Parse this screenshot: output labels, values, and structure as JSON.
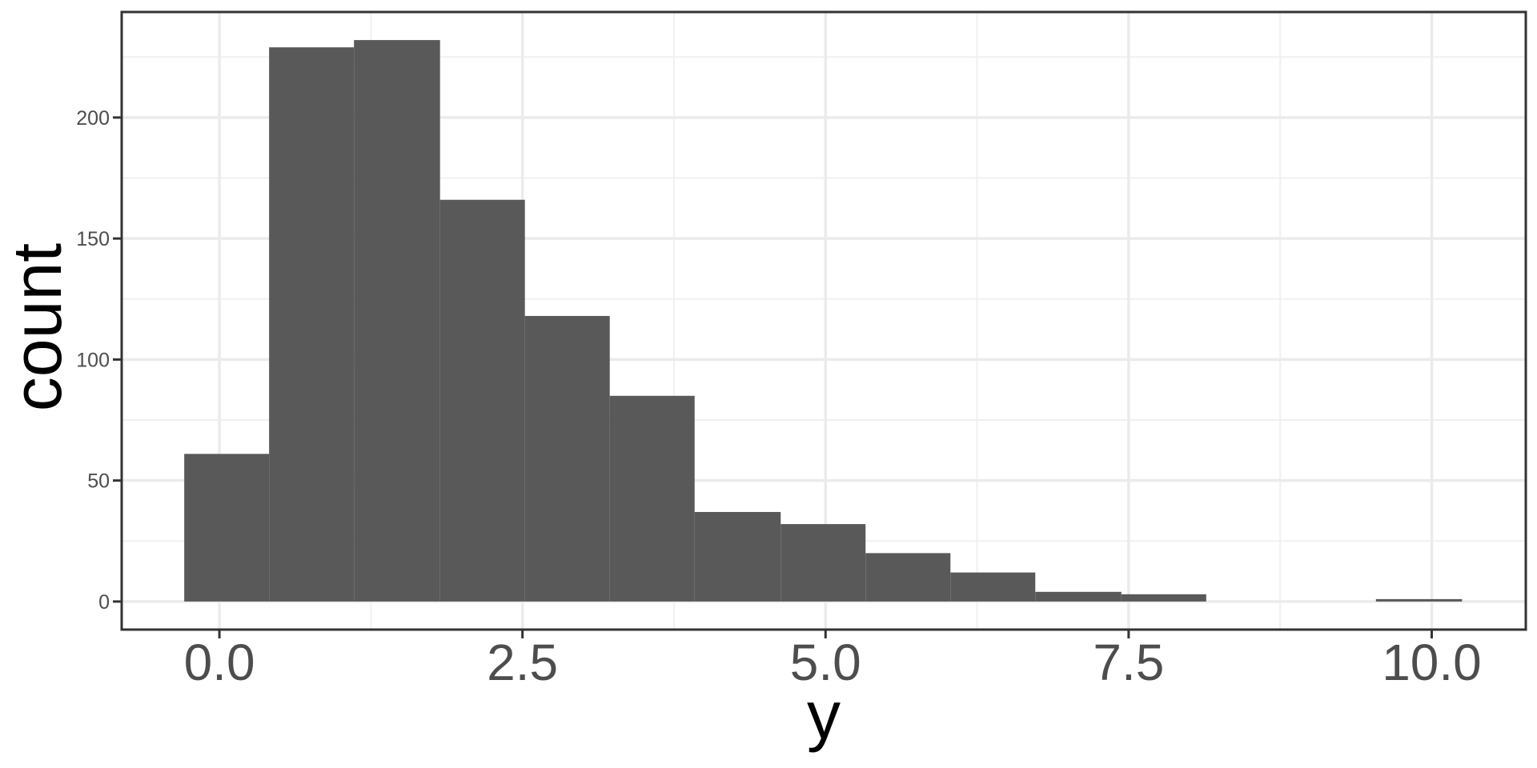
{
  "figure": {
    "background": "#FFFFFF"
  },
  "chart_data": {
    "type": "bar",
    "subtype": "histogram",
    "title": "",
    "xlabel": "y",
    "ylabel": "count",
    "bin_edges": [
      -0.29,
      0.41,
      1.11,
      1.82,
      2.52,
      3.22,
      3.92,
      4.63,
      5.33,
      6.03,
      6.73,
      7.44,
      8.14,
      8.84,
      9.54,
      10.25
    ],
    "counts": [
      61,
      229,
      232,
      166,
      118,
      85,
      37,
      32,
      20,
      12,
      4,
      3,
      0,
      0,
      1
    ],
    "total_n": 1000,
    "xlim": [
      -0.806,
      10.776
    ],
    "ylim": [
      -11.6,
      243.6
    ],
    "x_ticks": {
      "values": [
        0,
        2.5,
        5,
        7.5,
        10
      ],
      "labels": [
        "0.0",
        "2.5",
        "5.0",
        "7.5",
        "10.0"
      ]
    },
    "y_ticks": {
      "values": [
        0,
        50,
        100,
        150,
        200
      ],
      "labels": [
        "0",
        "50",
        "100",
        "150",
        "200"
      ]
    },
    "x_minor_ticks": [
      1.25,
      3.75,
      6.25,
      8.75
    ],
    "y_minor_ticks": [
      25,
      75,
      125,
      175,
      225
    ],
    "grid": true,
    "legend": "none",
    "colors": {
      "bar_fill": "#595959",
      "grid_major": "#EBEBEB",
      "grid_minor": "#F0F0F0",
      "panel_border": "#333333",
      "tick_mark": "#333333",
      "tick_label": "#4D4D4D",
      "axis_title": "#000000",
      "panel_background": "#FFFFFF"
    }
  }
}
